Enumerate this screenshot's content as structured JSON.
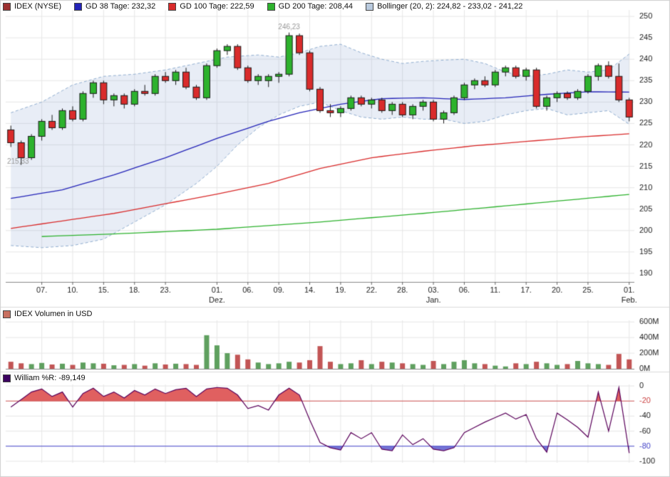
{
  "legend": {
    "price": [
      {
        "label": "IDEX (NYSE)",
        "swatch": "#9c3030"
      },
      {
        "label": "GD 38 Tage: 232,32",
        "swatch": "#2424b8"
      },
      {
        "label": "GD 100 Tage: 222,59",
        "swatch": "#d92b2b"
      },
      {
        "label": "GD 200 Tage: 208,44",
        "swatch": "#2db22d"
      },
      {
        "label": "Bollinger (20, 2): 224,82 - 233,02 - 241,22",
        "swatch": "#b9cade"
      }
    ],
    "volume": {
      "label": "IDEX Volumen in USD",
      "swatch": "#c87060"
    },
    "wr": {
      "label": "William %R: -89,149",
      "swatch": "#3c0060"
    }
  },
  "chart_data": [
    {
      "type": "candlestick",
      "title": "IDEX (NYSE)",
      "ylim": [
        188,
        251.5
      ],
      "y_ticks": [
        190,
        195,
        200,
        205,
        210,
        215,
        220,
        225,
        230,
        235,
        240,
        245,
        250
      ],
      "x_ticks": [
        {
          "i": 3,
          "label": "07."
        },
        {
          "i": 6,
          "label": "10."
        },
        {
          "i": 9,
          "label": "15."
        },
        {
          "i": 12,
          "label": "18."
        },
        {
          "i": 15,
          "label": "23."
        },
        {
          "i": 20,
          "label": "01.",
          "month": "Dez."
        },
        {
          "i": 23,
          "label": "06."
        },
        {
          "i": 26,
          "label": "09."
        },
        {
          "i": 29,
          "label": "14."
        },
        {
          "i": 32,
          "label": "19."
        },
        {
          "i": 35,
          "label": "22."
        },
        {
          "i": 38,
          "label": "28."
        },
        {
          "i": 41,
          "label": "03.",
          "month": "Jan."
        },
        {
          "i": 44,
          "label": "06."
        },
        {
          "i": 47,
          "label": "11."
        },
        {
          "i": 50,
          "label": "17."
        },
        {
          "i": 53,
          "label": "20."
        },
        {
          "i": 56,
          "label": "25."
        },
        {
          "i": 60,
          "label": "01.",
          "month": "Feb."
        }
      ],
      "candles": [
        [
          223.5,
          224.5,
          219.5,
          220.5
        ],
        [
          220.5,
          221,
          215.33,
          217
        ],
        [
          217,
          222.5,
          216.5,
          222
        ],
        [
          222,
          226,
          221,
          225.5
        ],
        [
          225.5,
          227,
          223.5,
          224
        ],
        [
          224,
          228.5,
          223.5,
          228
        ],
        [
          228,
          229,
          225.5,
          226
        ],
        [
          226,
          232.5,
          225.5,
          232
        ],
        [
          232,
          235,
          231,
          234.5
        ],
        [
          234.5,
          235,
          229.5,
          230.5
        ],
        [
          230.5,
          232,
          229,
          231.5
        ],
        [
          231.5,
          232,
          228.5,
          229.5
        ],
        [
          229.5,
          233,
          229,
          232.5
        ],
        [
          232.5,
          234,
          231.5,
          232
        ],
        [
          232,
          236.5,
          231.5,
          236
        ],
        [
          236,
          237,
          234.5,
          235
        ],
        [
          235,
          237.5,
          234,
          237
        ],
        [
          237,
          238,
          233,
          233.5
        ],
        [
          233.5,
          234,
          230.5,
          231
        ],
        [
          231,
          239,
          230.5,
          238.5
        ],
        [
          238.5,
          242.5,
          238,
          242
        ],
        [
          242,
          243.5,
          241,
          243
        ],
        [
          243,
          243.5,
          237.5,
          238
        ],
        [
          238,
          238.5,
          234.5,
          235
        ],
        [
          235,
          236.5,
          234,
          236
        ],
        [
          235,
          236.5,
          233.5,
          236
        ],
        [
          236,
          237,
          234.5,
          236.5
        ],
        [
          236.5,
          246.23,
          236,
          245.5
        ],
        [
          245.5,
          246,
          241,
          241.5
        ],
        [
          241.5,
          242,
          232.5,
          233
        ],
        [
          233,
          233.5,
          227.5,
          228
        ],
        [
          228,
          229.5,
          226.5,
          227.5
        ],
        [
          227.5,
          229,
          226.5,
          228.5
        ],
        [
          228.5,
          231.5,
          228,
          231
        ],
        [
          231,
          231.5,
          229,
          229.5
        ],
        [
          229.5,
          231,
          228.5,
          230.5
        ],
        [
          230.5,
          231,
          227.5,
          228
        ],
        [
          228,
          230,
          227,
          229.5
        ],
        [
          229.5,
          230,
          226.5,
          227
        ],
        [
          227,
          229.5,
          226,
          229
        ],
        [
          229,
          230.5,
          228,
          230
        ],
        [
          230,
          230.5,
          225.5,
          226
        ],
        [
          226,
          228,
          225,
          227.5
        ],
        [
          227.5,
          231.5,
          227,
          231
        ],
        [
          231,
          234.5,
          230.5,
          234
        ],
        [
          234,
          235.5,
          233,
          235
        ],
        [
          235,
          236,
          233.5,
          234
        ],
        [
          234,
          237.5,
          233.5,
          237
        ],
        [
          237,
          238.5,
          236,
          238
        ],
        [
          238,
          238.5,
          235.5,
          236
        ],
        [
          236,
          238,
          235,
          237.5
        ],
        [
          237.5,
          238,
          228.5,
          229
        ],
        [
          229,
          231.5,
          228,
          231
        ],
        [
          231,
          232.5,
          230,
          232
        ],
        [
          232,
          232.5,
          230.5,
          231
        ],
        [
          231,
          233,
          230.5,
          232.5
        ],
        [
          232.5,
          236.5,
          232,
          236
        ],
        [
          236,
          239,
          235,
          238.5
        ],
        [
          238.5,
          239.5,
          235.5,
          236
        ],
        [
          236,
          239,
          230,
          230.5
        ],
        [
          230.5,
          231,
          225.5,
          226.5
        ]
      ],
      "overlays": {
        "gd38": {
          "name": "GD 38 Tage",
          "value": "232,32",
          "color": "#2424b8",
          "anchors": [
            [
              0,
              207.5
            ],
            [
              5,
              209.5
            ],
            [
              10,
              213
            ],
            [
              15,
              217
            ],
            [
              20,
              221.5
            ],
            [
              25,
              225.5
            ],
            [
              28,
              227.5
            ],
            [
              32,
              229.5
            ],
            [
              36,
              230.8
            ],
            [
              40,
              231
            ],
            [
              44,
              230.6
            ],
            [
              48,
              231
            ],
            [
              52,
              231.8
            ],
            [
              56,
              232.4
            ],
            [
              60,
              232.32
            ]
          ]
        },
        "gd100": {
          "name": "GD 100 Tage",
          "value": "222,59",
          "color": "#d92b2b",
          "anchors": [
            [
              0,
              200.5
            ],
            [
              10,
              204
            ],
            [
              20,
              208.5
            ],
            [
              25,
              211
            ],
            [
              30,
              214.5
            ],
            [
              35,
              217
            ],
            [
              40,
              218.5
            ],
            [
              45,
              219.8
            ],
            [
              50,
              220.8
            ],
            [
              55,
              221.8
            ],
            [
              60,
              222.59
            ]
          ]
        },
        "gd200": {
          "name": "GD 200 Tage",
          "value": "208,44",
          "color": "#2db22d",
          "anchors": [
            [
              3,
              198.6
            ],
            [
              10,
              199.2
            ],
            [
              20,
              200.3
            ],
            [
              30,
              202
            ],
            [
              40,
              204
            ],
            [
              50,
              206.2
            ],
            [
              60,
              208.44
            ]
          ]
        }
      },
      "bollinger": {
        "label": "Bollinger (20, 2)",
        "values": "224,82 - 233,02 - 241,22",
        "fill": "rgba(125,155,205,0.18)",
        "edge": "#90aed0",
        "upper": [
          [
            0,
            227.5
          ],
          [
            3,
            230
          ],
          [
            6,
            234
          ],
          [
            9,
            236
          ],
          [
            12,
            236.5
          ],
          [
            15,
            237.5
          ],
          [
            18,
            239
          ],
          [
            21,
            240.5
          ],
          [
            24,
            241
          ],
          [
            26,
            240.5
          ],
          [
            28,
            241.5
          ],
          [
            30,
            243
          ],
          [
            32,
            243.5
          ],
          [
            34,
            241.5
          ],
          [
            36,
            240
          ],
          [
            38,
            239
          ],
          [
            40,
            239.5
          ],
          [
            42,
            239.8
          ],
          [
            44,
            240
          ],
          [
            46,
            239
          ],
          [
            48,
            237
          ],
          [
            50,
            236
          ],
          [
            52,
            236.5
          ],
          [
            54,
            237.5
          ],
          [
            56,
            237
          ],
          [
            58,
            237.5
          ],
          [
            60,
            241.22
          ]
        ],
        "lower": [
          [
            0,
            196.5
          ],
          [
            3,
            196
          ],
          [
            6,
            196.5
          ],
          [
            9,
            198
          ],
          [
            12,
            202
          ],
          [
            15,
            206
          ],
          [
            18,
            211
          ],
          [
            20,
            215
          ],
          [
            22,
            220
          ],
          [
            24,
            224
          ],
          [
            26,
            227
          ],
          [
            28,
            229
          ],
          [
            30,
            230
          ],
          [
            32,
            228
          ],
          [
            34,
            226.5
          ],
          [
            36,
            226
          ],
          [
            38,
            226.5
          ],
          [
            40,
            226
          ],
          [
            42,
            226
          ],
          [
            44,
            225
          ],
          [
            46,
            225.5
          ],
          [
            48,
            227
          ],
          [
            50,
            228
          ],
          [
            52,
            228.5
          ],
          [
            54,
            227
          ],
          [
            56,
            227.5
          ],
          [
            58,
            228
          ],
          [
            60,
            224.82
          ]
        ]
      },
      "annotations": [
        {
          "i": 27,
          "price": 247.4,
          "text": "246,23",
          "align": "center"
        },
        {
          "i": 0,
          "price": 216,
          "text": "215,33",
          "align": "left"
        }
      ],
      "colors": {
        "up": "#2db22d",
        "down": "#d92b2b",
        "wick": "#1a1a1a",
        "grid": "#e7e7e7",
        "axis_text": "#222222",
        "annotation": "#999999"
      }
    },
    {
      "type": "bar",
      "title": "IDEX Volumen in USD",
      "ylim": [
        0,
        620
      ],
      "y_ticks": [
        {
          "v": 0,
          "label": "0M"
        },
        {
          "v": 200,
          "label": "200M"
        },
        {
          "v": 400,
          "label": "400M"
        },
        {
          "v": 600,
          "label": "600M"
        }
      ],
      "values": [
        90,
        70,
        60,
        75,
        55,
        65,
        50,
        80,
        70,
        65,
        45,
        50,
        60,
        40,
        70,
        55,
        65,
        60,
        50,
        430,
        300,
        200,
        180,
        120,
        80,
        60,
        70,
        90,
        80,
        110,
        290,
        90,
        60,
        70,
        110,
        60,
        90,
        80,
        70,
        60,
        50,
        100,
        60,
        90,
        110,
        70,
        60,
        40,
        30,
        70,
        60,
        90,
        70,
        50,
        60,
        100,
        70,
        60,
        50,
        190,
        120
      ],
      "colors": {
        "up": "#5fa05f",
        "down": "#c25555"
      }
    },
    {
      "type": "line",
      "title": "William %R",
      "current_value": "-89,149",
      "ylim": [
        2,
        -102
      ],
      "y_ticks": [
        {
          "v": 0,
          "label": "0",
          "color": "#222222"
        },
        {
          "v": -20,
          "label": "-20",
          "color": "#cc4444"
        },
        {
          "v": -40,
          "label": "-40",
          "color": "#222222"
        },
        {
          "v": -60,
          "label": "-60",
          "color": "#222222"
        },
        {
          "v": -80,
          "label": "-80",
          "color": "#4646c8"
        },
        {
          "v": -100,
          "label": "-100",
          "color": "#222222"
        }
      ],
      "values": [
        -28,
        -18,
        -8,
        -4,
        -14,
        -8,
        -28,
        -10,
        -3,
        -14,
        -8,
        -16,
        -6,
        -12,
        -4,
        -10,
        -5,
        -3,
        -14,
        -4,
        -2,
        -3,
        -12,
        -30,
        -26,
        -32,
        -12,
        -3,
        -12,
        -45,
        -75,
        -82,
        -85,
        -62,
        -70,
        -62,
        -84,
        -86,
        -65,
        -78,
        -70,
        -84,
        -86,
        -82,
        -62,
        -55,
        -48,
        -42,
        -36,
        -44,
        -38,
        -70,
        -88,
        -36,
        -45,
        -55,
        -68,
        -8,
        -60,
        -2,
        -89.149
      ],
      "line_color": "#5a005a",
      "upper_threshold": {
        "v": -20,
        "color": "#cc5555",
        "fill": "#e06060"
      },
      "lower_threshold": {
        "v": -80,
        "color": "#4646c8",
        "fill": "#7575d5"
      }
    }
  ]
}
